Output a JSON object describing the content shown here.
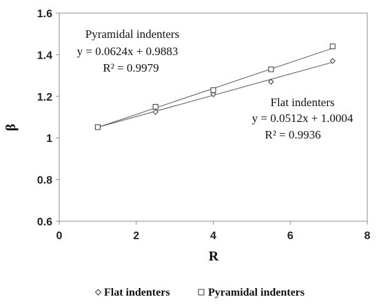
{
  "chart_data": {
    "type": "scatter",
    "xlabel": "R",
    "ylabel": "β",
    "xlim": [
      0,
      8
    ],
    "ylim": [
      0.6,
      1.6
    ],
    "xticks": [
      0,
      2,
      4,
      6,
      8
    ],
    "yticks": [
      0.6,
      0.8,
      1.0,
      1.2,
      1.4,
      1.6
    ],
    "xtick_labels": [
      "0",
      "2",
      "4",
      "6",
      "8"
    ],
    "ytick_labels": [
      "0.6",
      "0.8",
      "1",
      "1.2",
      "1.4",
      "1.6"
    ],
    "grid": false,
    "legend_position": "bottom",
    "series": [
      {
        "name": "Flat indenters",
        "marker": "diamond",
        "x": [
          1.0,
          2.5,
          4.0,
          5.5,
          7.1
        ],
        "y": [
          1.052,
          1.125,
          1.21,
          1.27,
          1.37
        ],
        "trendline": {
          "slope": 0.0512,
          "intercept": 1.0004
        },
        "annotation": [
          "Flat indenters",
          "y = 0.0512x + 1.0004",
          "R² = 0.9936"
        ]
      },
      {
        "name": "Pyramidal indenters",
        "marker": "square",
        "x": [
          1.0,
          2.5,
          4.0,
          5.5,
          7.1
        ],
        "y": [
          1.052,
          1.15,
          1.23,
          1.33,
          1.44
        ],
        "trendline": {
          "slope": 0.0624,
          "intercept": 0.9883
        },
        "annotation": [
          "Pyramidal indenters",
          "y = 0.0624x + 0.9883",
          "R² = 0.9979"
        ]
      }
    ]
  },
  "colors": {
    "ink": "#333333",
    "trend": "#555555"
  }
}
